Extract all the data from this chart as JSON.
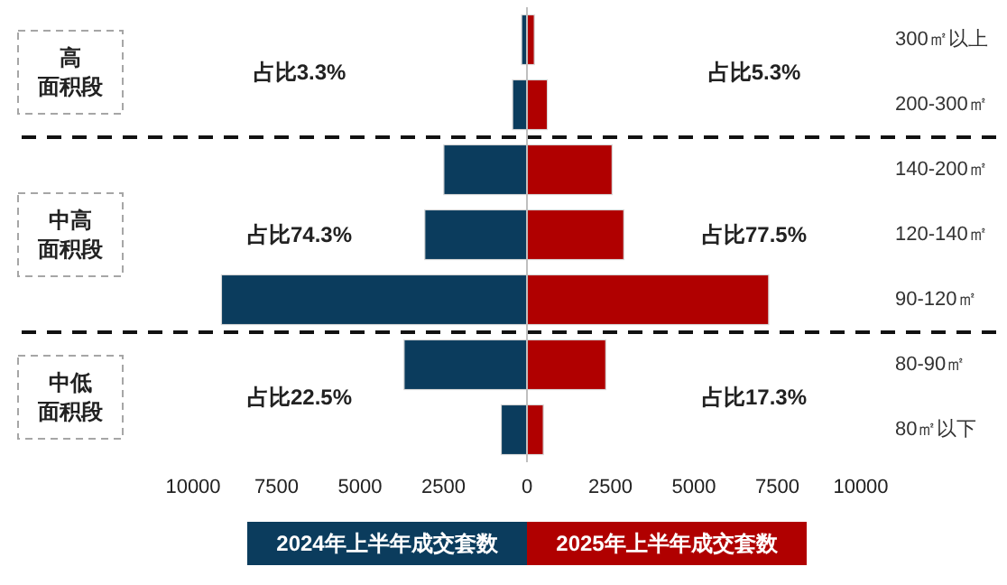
{
  "chart_data": {
    "type": "bar",
    "orientation": "horizontal",
    "stacked": true,
    "categories": [
      "300㎡以上",
      "200-300㎡",
      "140-200㎡",
      "120-140㎡",
      "90-120㎡",
      "80-90㎡",
      "80㎡以下"
    ],
    "series": [
      {
        "name": "2024年上半年成交套数",
        "color": "#0b3c5d",
        "values": [
          -160,
          -430,
          -2490,
          -3060,
          -9150,
          -3680,
          -770
        ]
      },
      {
        "name": "2025年上半年成交套数",
        "color": "#b00000",
        "values": [
          220,
          610,
          2550,
          2900,
          7240,
          2360,
          490
        ]
      }
    ],
    "xlim": [
      -10000,
      10000
    ],
    "xticks": [
      {
        "value": -10000,
        "label": "10000"
      },
      {
        "value": -7500,
        "label": "7500"
      },
      {
        "value": -5000,
        "label": "5000"
      },
      {
        "value": -2500,
        "label": "2500"
      },
      0,
      2500,
      5000,
      7500,
      10000
    ],
    "annotations": [
      "高面积段",
      "占比3.3%",
      "占比5.3%",
      "中高面积段",
      "占比74.3%",
      "占比77.5%",
      "中低面积段",
      "占比22.5%",
      "占比17.3%"
    ],
    "legend": "bottom",
    "grid": false
  }
}
